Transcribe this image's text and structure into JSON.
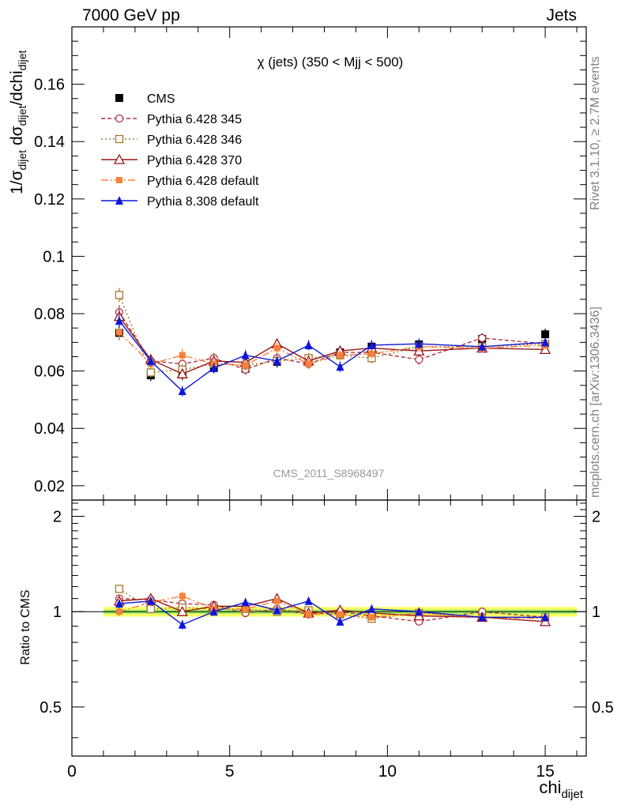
{
  "header": {
    "energy_label": "7000 GeV pp",
    "category_label": "Jets"
  },
  "side_labels": {
    "rivet": "Rivet 3.1.10, ≥ 2.7M events",
    "mcplots": "mcplots.cern.ch [arXiv:1306.3436]"
  },
  "chart_data": {
    "type": "scatter",
    "title": "χ (jets) (350 < Mjj <  500)",
    "watermark": "CMS_2011_S8968497",
    "xlabel": "chi",
    "xlabel_sub": "dijet",
    "ylabel_parts": [
      "1/σ",
      "dijet",
      " dσ",
      "dijet",
      "/dchi",
      "dijet"
    ],
    "ratio_ylabel": "Ratio to CMS",
    "xlim": [
      0,
      16.3
    ],
    "ylim": [
      0.015,
      0.18
    ],
    "ratio_ylim": [
      0.35,
      2.25
    ],
    "x_ticks": [
      0,
      5,
      10,
      15
    ],
    "y_ticks": [
      0.02,
      0.04,
      0.06,
      0.08,
      0.1,
      0.12,
      0.14,
      0.16
    ],
    "y_tick_labels": [
      "0.02",
      "0.04",
      "0.06",
      "0.08",
      "0.1",
      "0.12",
      "0.14",
      "0.16"
    ],
    "ratio_ticks": [
      0.5,
      1,
      2
    ],
    "ratio_tick_labels": [
      "0.5",
      "1",
      "2"
    ],
    "x": [
      1.5,
      2.5,
      3.5,
      4.5,
      5.5,
      6.5,
      7.5,
      8.5,
      9.5,
      11,
      13,
      15
    ],
    "x_edges": [
      1,
      2,
      3,
      4,
      5,
      6,
      7,
      8,
      9,
      10,
      12,
      14,
      16
    ],
    "reference": {
      "name": "CMS",
      "values": [
        0.0733,
        0.0585,
        0.0588,
        0.0612,
        0.0608,
        0.0632,
        0.064,
        0.0665,
        0.0685,
        0.0693,
        0.0712,
        0.0728
      ],
      "errors": [
        0.0025,
        0.002,
        0.002,
        0.002,
        0.002,
        0.002,
        0.002,
        0.002,
        0.002,
        0.002,
        0.002,
        0.002
      ],
      "color": "#000000"
    },
    "band_colors": {
      "outer": "#ffff66",
      "inner": "#99ee66"
    },
    "series": [
      {
        "name": "Pythia 6.428 345",
        "color": "#b2353f",
        "dash": "5,3",
        "marker": "circle-open",
        "values": [
          0.0805,
          0.0635,
          0.0625,
          0.0645,
          0.0605,
          0.0645,
          0.0625,
          0.0665,
          0.0665,
          0.064,
          0.0715,
          0.0695
        ],
        "errors": [
          0.0025,
          0.0018,
          0.0018,
          0.0018,
          0.0018,
          0.0018,
          0.0018,
          0.0018,
          0.0018,
          0.0018,
          0.0015,
          0.0015
        ],
        "ratio": [
          1.1,
          1.09,
          1.06,
          1.05,
          0.99,
          1.02,
          0.98,
          1.0,
          0.97,
          0.93,
          1.0,
          0.96
        ]
      },
      {
        "name": "Pythia 6.428 346",
        "color": "#a0782e",
        "dash": "2,3",
        "marker": "square-open",
        "values": [
          0.0865,
          0.0595,
          0.0605,
          0.0625,
          0.062,
          0.0635,
          0.0645,
          0.0655,
          0.0645,
          0.0685,
          0.0685,
          0.0695
        ],
        "errors": [
          0.0025,
          0.0018,
          0.0018,
          0.0018,
          0.0018,
          0.0018,
          0.0018,
          0.0018,
          0.0018,
          0.0018,
          0.0015,
          0.0015
        ],
        "ratio": [
          1.18,
          1.02,
          1.03,
          1.02,
          1.02,
          1.0,
          1.01,
          0.98,
          0.95,
          0.99,
          0.96,
          0.96
        ]
      },
      {
        "name": "Pythia 6.428 370",
        "color": "#9a1515",
        "dash": "",
        "marker": "triangle-open",
        "values": [
          0.079,
          0.064,
          0.059,
          0.0635,
          0.063,
          0.0695,
          0.0635,
          0.067,
          0.068,
          0.067,
          0.068,
          0.0675
        ],
        "errors": [
          0.0025,
          0.0018,
          0.0018,
          0.0018,
          0.0018,
          0.0018,
          0.0018,
          0.0018,
          0.0018,
          0.0018,
          0.0015,
          0.0015
        ],
        "ratio": [
          1.08,
          1.1,
          1.0,
          1.04,
          1.04,
          1.1,
          0.99,
          1.01,
          0.99,
          0.97,
          0.96,
          0.93
        ]
      },
      {
        "name": "Pythia 6.428 default",
        "color": "#f5813c",
        "dash": "9,3,2,3",
        "marker": "square-filled",
        "values": [
          0.0735,
          0.0625,
          0.0655,
          0.0625,
          0.062,
          0.068,
          0.0625,
          0.0655,
          0.066,
          0.0685,
          0.068,
          0.069
        ],
        "errors": [
          0.0025,
          0.0018,
          0.0022,
          0.0018,
          0.0018,
          0.0018,
          0.0018,
          0.0018,
          0.0018,
          0.0018,
          0.0015,
          0.0015
        ],
        "ratio": [
          1.0,
          1.07,
          1.12,
          1.02,
          1.02,
          1.08,
          0.98,
          0.98,
          0.96,
          0.99,
          0.96,
          0.95
        ]
      },
      {
        "name": "Pythia 8.308 default",
        "color": "#0d16d9",
        "dash": "",
        "marker": "triangle-filled",
        "values": [
          0.0775,
          0.0635,
          0.053,
          0.061,
          0.0655,
          0.0635,
          0.069,
          0.0615,
          0.069,
          0.0695,
          0.0685,
          0.07
        ],
        "errors": [
          0.0025,
          0.0018,
          0.0018,
          0.0018,
          0.0018,
          0.0018,
          0.0018,
          0.0018,
          0.0018,
          0.0018,
          0.0015,
          0.0015
        ],
        "ratio": [
          1.06,
          1.08,
          0.91,
          1.0,
          1.07,
          1.01,
          1.08,
          0.93,
          1.02,
          1.0,
          0.96,
          0.96
        ]
      }
    ]
  }
}
